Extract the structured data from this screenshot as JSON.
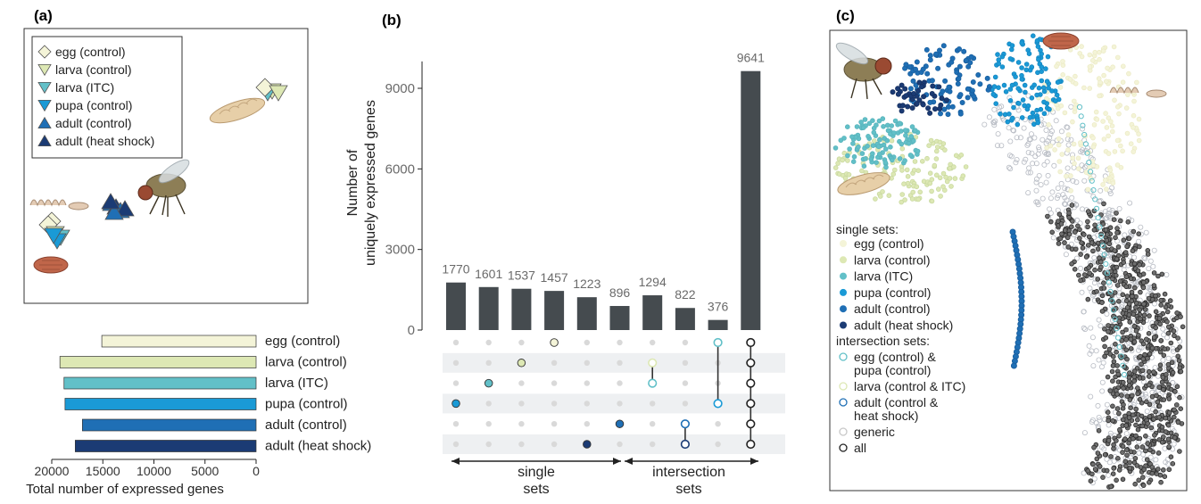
{
  "colors": {
    "egg": "#f4f4d8",
    "larva_control": "#dde8b4",
    "larva_itc": "#62c0c8",
    "pupa": "#1a9ad6",
    "adult_control": "#1f6fb5",
    "adult_heat": "#1b3b74",
    "bar_dark": "#454b4f",
    "dot_grey": "#d9d9d9",
    "all": "#222222"
  },
  "panel_a": {
    "letter": "(a)",
    "legend": [
      "egg (control)",
      "larva (control)",
      "larva (ITC)",
      "pupa (control)",
      "adult (control)",
      "adult (heat shock)"
    ]
  },
  "chart_data": [
    {
      "type": "bar",
      "orientation": "horizontal",
      "categories": [
        "egg (control)",
        "larva (control)",
        "larva (ITC)",
        "pupa (control)",
        "adult (control)",
        "adult (heat shock)"
      ],
      "values": [
        15100,
        19200,
        18800,
        18700,
        17000,
        17700
      ],
      "xlabel": "Total number of expressed genes",
      "xticks": [
        "20000",
        "15000",
        "10000",
        "5000",
        "0"
      ],
      "xlim": [
        20000,
        0
      ]
    },
    {
      "type": "bar",
      "title": "",
      "ylabel_line1": "Number of",
      "ylabel_line2": "uniquely expressed genes",
      "yticks": [
        "0",
        "3000",
        "6000",
        "9000"
      ],
      "ylim": [
        0,
        10000
      ],
      "values": [
        1770,
        1601,
        1537,
        1457,
        1223,
        896,
        1294,
        822,
        376,
        9641
      ],
      "value_labels": [
        "1770",
        "1601",
        "1537",
        "1457",
        "1223",
        "896",
        "1294",
        "822",
        "376",
        "9641"
      ],
      "matrix_rows": [
        "egg (control)",
        "larva (control)",
        "larva (ITC)",
        "pupa (control)",
        "adult (control)",
        "adult (heat shock)"
      ],
      "memberships": [
        [
          3
        ],
        [
          2
        ],
        [
          1
        ],
        [
          0
        ],
        [
          5
        ],
        [
          4
        ],
        [
          1,
          2
        ],
        [
          4,
          5
        ],
        [
          0,
          3
        ],
        [
          0,
          1,
          2,
          3,
          4,
          5
        ]
      ],
      "group_single": "single\nsets",
      "group_single_l1": "single",
      "group_single_l2": "sets",
      "group_inter_l1": "intersection",
      "group_inter_l2": "sets"
    }
  ],
  "panel_b": {
    "letter": "(b)"
  },
  "panel_c": {
    "letter": "(c)",
    "single_title": "single sets:",
    "single_items": [
      "egg (control)",
      "larva (control)",
      "larva (ITC)",
      "pupa (control)",
      "adult (control)",
      "adult (heat shock)"
    ],
    "inter_title": "intersection sets:",
    "inter_items": [
      [
        "egg (control) &",
        "pupa (control)"
      ],
      [
        "larva (control & ITC)"
      ],
      [
        "adult (control &",
        "heat shock)"
      ],
      [
        "generic"
      ],
      [
        "all"
      ]
    ]
  }
}
